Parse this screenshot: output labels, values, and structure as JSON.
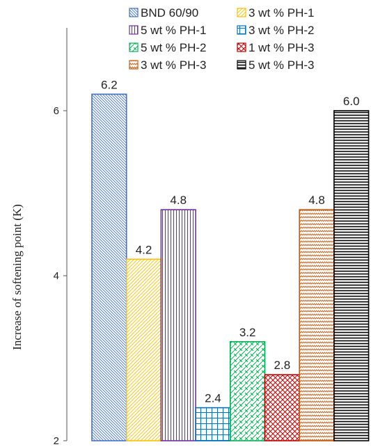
{
  "chart_data": {
    "type": "bar",
    "title": "",
    "xlabel": "",
    "ylabel": "Increase of softening point (K)",
    "ylim": [
      2,
      7
    ],
    "yticks": [
      2,
      4,
      6
    ],
    "grid": false,
    "legend_placement": "top",
    "categories": [
      "BND 60/90",
      "3 wt % PH-1",
      "5 wt % PH-1",
      "3 wt % PH-2",
      "5 wt % PH-2",
      "1 wt % PH-3",
      "3 wt % PH-3",
      "5 wt % PH-3"
    ],
    "values": [
      6.2,
      4.2,
      4.8,
      2.4,
      3.2,
      2.8,
      4.8,
      6.0
    ],
    "data_labels": [
      "6.2",
      "4.2",
      "4.8",
      "2.4",
      "3.2",
      "2.8",
      "4.8",
      "6.0"
    ],
    "series_colors": [
      "#4472C4",
      "#FFC000",
      "#7030A0",
      "#0070C0",
      "#00B050",
      "#C00000",
      "#C55A11",
      "#000000"
    ],
    "series_patterns": [
      "diagonal-down",
      "diagonal-up",
      "vertical",
      "grid",
      "diagonal-brick",
      "diagonal-crosshatch",
      "zigzag",
      "horizontal"
    ]
  }
}
